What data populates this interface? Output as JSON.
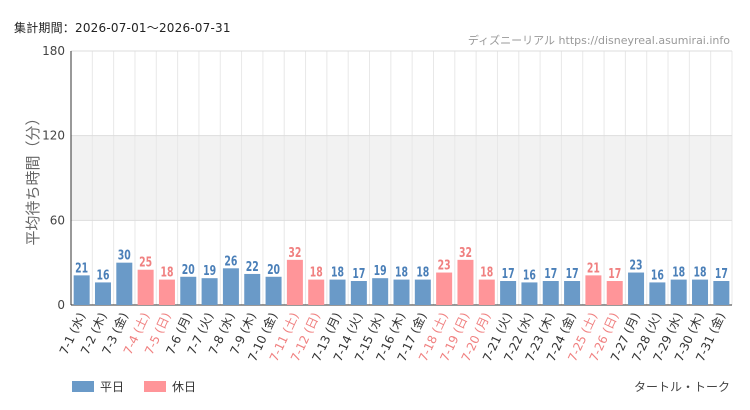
{
  "header": {
    "period": "集計期間：2026-07-01～2026-07-31",
    "source": "ディズニーリアル https://disneyreal.asumirai.info"
  },
  "footer": {
    "attraction": "タートル・トーク"
  },
  "colors": {
    "weekday": "#6a9ac8",
    "holiday": "#ff9599",
    "holiday_text": "#f08080",
    "weekday_text": "#4a7fb8"
  },
  "chart_data": {
    "type": "bar",
    "ylabel": "平均待ち時間（分）",
    "ylim": [
      0,
      180
    ],
    "yticks": [
      0,
      60,
      120,
      180
    ],
    "legend": [
      {
        "name": "平日",
        "key": "weekday"
      },
      {
        "name": "休日",
        "key": "holiday"
      }
    ],
    "categories": [
      "7-1 (水)",
      "7-2 (木)",
      "7-3 (金)",
      "7-4 (土)",
      "7-5 (日)",
      "7-6 (月)",
      "7-7 (火)",
      "7-8 (水)",
      "7-9 (木)",
      "7-10 (金)",
      "7-11 (土)",
      "7-12 (日)",
      "7-13 (月)",
      "7-14 (火)",
      "7-15 (水)",
      "7-16 (木)",
      "7-17 (金)",
      "7-18 (土)",
      "7-19 (日)",
      "7-20 (月)",
      "7-21 (火)",
      "7-22 (水)",
      "7-23 (木)",
      "7-24 (金)",
      "7-25 (土)",
      "7-26 (日)",
      "7-27 (月)",
      "7-28 (火)",
      "7-29 (水)",
      "7-30 (木)",
      "7-31 (金)"
    ],
    "values": [
      21,
      16,
      30,
      25,
      18,
      20,
      19,
      26,
      22,
      20,
      32,
      18,
      18,
      17,
      19,
      18,
      18,
      23,
      32,
      18,
      17,
      16,
      17,
      17,
      21,
      17,
      23,
      16,
      18,
      18,
      17
    ],
    "day_type": [
      "weekday",
      "weekday",
      "weekday",
      "holiday",
      "holiday",
      "weekday",
      "weekday",
      "weekday",
      "weekday",
      "weekday",
      "holiday",
      "holiday",
      "weekday",
      "weekday",
      "weekday",
      "weekday",
      "weekday",
      "holiday",
      "holiday",
      "holiday",
      "weekday",
      "weekday",
      "weekday",
      "weekday",
      "holiday",
      "holiday",
      "weekday",
      "weekday",
      "weekday",
      "weekday",
      "weekday"
    ]
  }
}
